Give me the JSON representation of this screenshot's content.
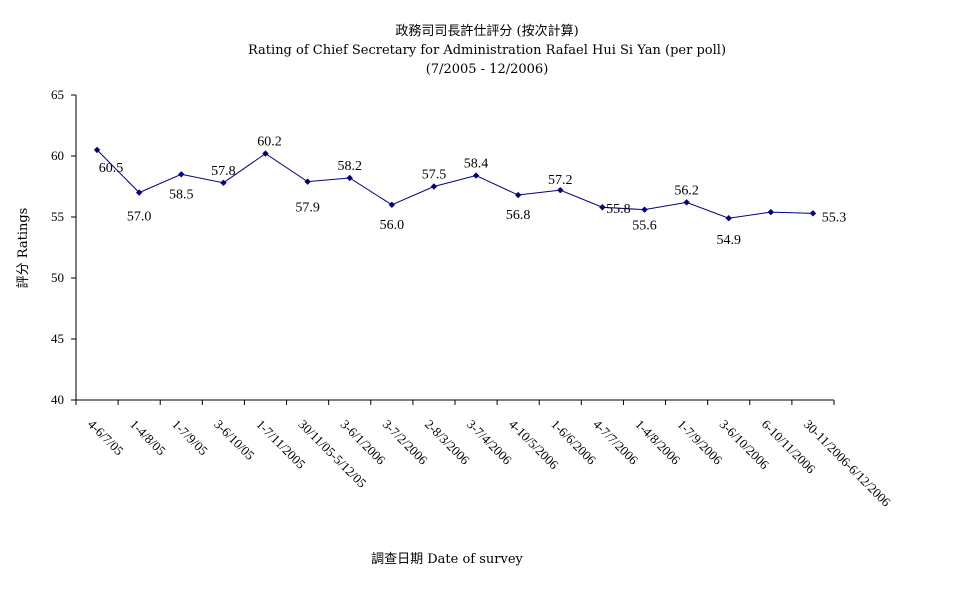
{
  "chart_data": {
    "type": "line",
    "title": "政務司司長許仕評分 (按次計算)",
    "subtitle": "Rating of Chief Secretary for Administration Rafael Hui Si Yan  (per poll)",
    "period": "(7/2005 - 12/2006)",
    "xlabel": "調查日期 Date of survey",
    "ylabel": "評分 Ratings",
    "ylim": [
      40,
      65
    ],
    "yticks": [
      40,
      45,
      50,
      55,
      60,
      65
    ],
    "grid": false,
    "legend": "none",
    "line_color": "#000080",
    "categories": [
      "4-6/7/05",
      "1-4/8/05",
      "1-7/9/05",
      "3-6/10/05",
      "1-7/11/2005",
      "30/11/05-5/12/05",
      "3-6/1/2006",
      "3-7/2/2006",
      "2-8/3/2006",
      "3-7/4/2006",
      "4-10/5/2006",
      "1-6/6/2006",
      "4-7/7/2006",
      "1-4/8/2006",
      "1-7/9/2006",
      "3-6/10/2006",
      "6-10/11/2006",
      "30-11/2006-6/12/2006"
    ],
    "values": [
      60.5,
      57.0,
      58.5,
      57.8,
      60.2,
      57.9,
      58.2,
      56.0,
      57.5,
      58.4,
      56.8,
      57.2,
      55.8,
      55.6,
      56.2,
      54.9,
      55.4,
      55.3
    ],
    "data_labels": [
      "60.5",
      "57.0",
      "58.5",
      "57.8",
      "60.2",
      "57.9",
      "58.2",
      "56.0",
      "57.5",
      "58.4",
      "56.8",
      "57.2",
      "55.8",
      "55.6",
      "56.2",
      "54.9",
      "",
      "55.3"
    ]
  }
}
